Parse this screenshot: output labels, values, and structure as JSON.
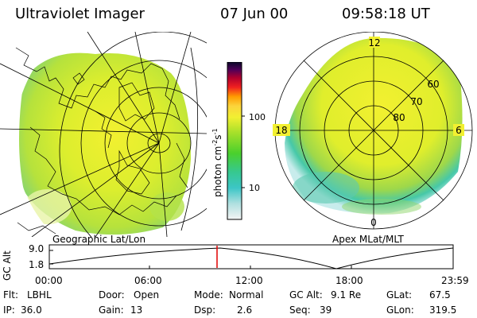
{
  "header": {
    "title": "Ultraviolet Imager",
    "date": "07 Jun 00",
    "time": "09:58:18 UT"
  },
  "left_panel": {
    "caption": "Geographic Lat/Lon"
  },
  "right_panel": {
    "caption": "Apex MLat/MLT",
    "mlt_labels": {
      "top": "12",
      "left": "18",
      "right": "6",
      "bottom": "0"
    },
    "lat_labels": [
      "60",
      "70",
      "80"
    ]
  },
  "colorbar": {
    "unit": "photon cm",
    "exp1": "-2",
    "unit_s": "s",
    "exp2": "-1",
    "tick_high": "100",
    "tick_low": "10"
  },
  "altitude_plot": {
    "ylabel": "GC Alt",
    "y_high": "9.0",
    "y_low": "1.8",
    "x_ticks": [
      "00:00",
      "06:00",
      "12:00",
      "18:00",
      "23:59"
    ],
    "marker_color": "#e00000"
  },
  "footer": {
    "row1": {
      "flt_key": "Flt:",
      "flt_val": "LBHL",
      "door_key": "Door:",
      "door_val": "Open",
      "mode_key": "Mode:",
      "mode_val": "Normal",
      "alt_key": "GC Alt:",
      "alt_val": "9.1 Re",
      "glat_key": "GLat:",
      "glat_val": "67.5"
    },
    "row2": {
      "ip_key": "IP:",
      "ip_val": "36.0",
      "gain_key": "Gain:",
      "gain_val": "13",
      "dsp_key": "Dsp:",
      "dsp_val": "2.6",
      "seq_key": "Seq:",
      "seq_val": "39",
      "glon_key": "GLon:",
      "glon_val": "319.5"
    }
  },
  "colors": {
    "aurora_main": "#d8ec2c",
    "aurora_bright": "#f0f02a",
    "aurora_green": "#9ed84a",
    "aurora_cyan": "#42c6b8",
    "aurora_faint": "#c8ecec"
  }
}
